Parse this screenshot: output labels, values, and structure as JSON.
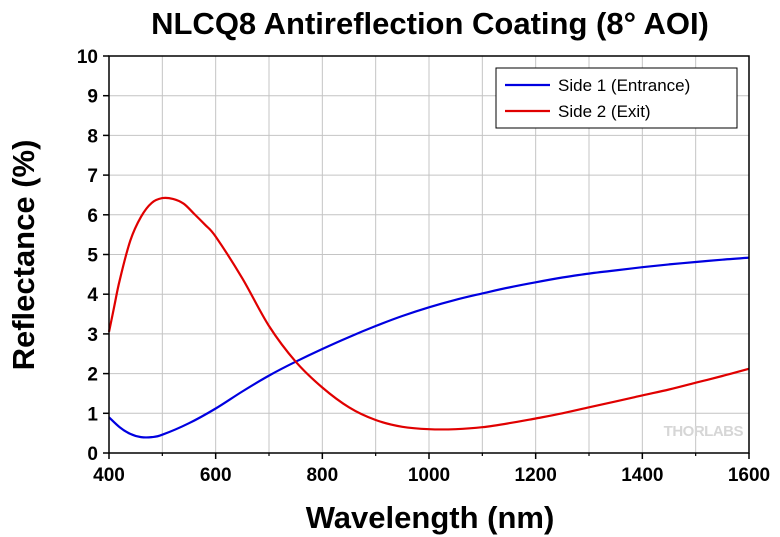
{
  "chart_data": {
    "type": "line",
    "title": "NLCQ8 Antireflection Coating (8° AOI)",
    "xlabel": "Wavelength (nm)",
    "ylabel": "Reflectance (%)",
    "xlim": [
      400,
      1600
    ],
    "ylim": [
      0,
      10
    ],
    "xticks": [
      400,
      600,
      800,
      1000,
      1200,
      1400,
      1600
    ],
    "yticks": [
      0,
      1,
      2,
      3,
      4,
      5,
      6,
      7,
      8,
      9,
      10
    ],
    "grid": true,
    "legend_position": "top-right",
    "watermark": "THORLABS",
    "series": [
      {
        "name": "Side 1 (Entrance)",
        "color": "#0000e0",
        "x": [
          400,
          420,
          440,
          460,
          480,
          500,
          550,
          600,
          650,
          700,
          750,
          800,
          850,
          900,
          950,
          1000,
          1050,
          1100,
          1150,
          1200,
          1250,
          1300,
          1350,
          1400,
          1450,
          1500,
          1550,
          1600
        ],
        "y": [
          0.9,
          0.65,
          0.48,
          0.4,
          0.4,
          0.46,
          0.75,
          1.12,
          1.55,
          1.95,
          2.3,
          2.62,
          2.92,
          3.2,
          3.45,
          3.67,
          3.86,
          4.02,
          4.17,
          4.3,
          4.42,
          4.52,
          4.6,
          4.68,
          4.75,
          4.81,
          4.87,
          4.92
        ]
      },
      {
        "name": "Side 2 (Exit)",
        "color": "#e00000",
        "x": [
          400,
          410,
          420,
          440,
          460,
          480,
          500,
          520,
          540,
          560,
          580,
          600,
          650,
          700,
          750,
          800,
          850,
          900,
          950,
          1000,
          1050,
          1100,
          1150,
          1200,
          1250,
          1300,
          1350,
          1400,
          1450,
          1500,
          1550,
          1600
        ],
        "y": [
          3.05,
          3.7,
          4.35,
          5.35,
          5.95,
          6.3,
          6.42,
          6.4,
          6.28,
          6.02,
          5.75,
          5.45,
          4.4,
          3.2,
          2.3,
          1.65,
          1.15,
          0.83,
          0.66,
          0.6,
          0.6,
          0.65,
          0.75,
          0.87,
          1.0,
          1.15,
          1.3,
          1.45,
          1.6,
          1.77,
          1.94,
          2.12
        ]
      }
    ]
  }
}
